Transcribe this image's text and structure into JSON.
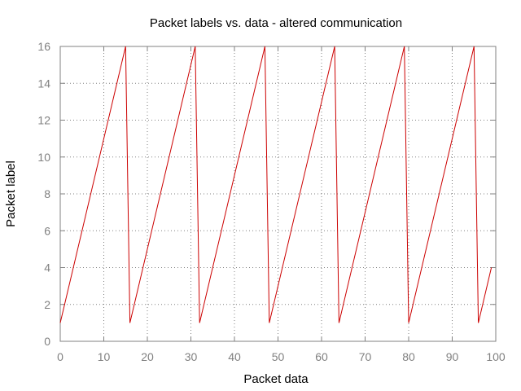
{
  "chart_data": {
    "type": "line",
    "title": "Packet labels vs. data - altered communication",
    "xlabel": "Packet data",
    "ylabel": "Packet label",
    "xlim": [
      0,
      100
    ],
    "ylim": [
      0,
      16
    ],
    "x_ticks": [
      0,
      10,
      20,
      30,
      40,
      50,
      60,
      70,
      80,
      90,
      100
    ],
    "y_ticks": [
      0,
      2,
      4,
      6,
      8,
      10,
      12,
      14,
      16
    ],
    "grid": true,
    "series": [
      {
        "color": "#cc0000",
        "x": [
          0,
          15,
          16,
          31,
          32,
          47,
          48,
          63,
          64,
          79,
          80,
          95,
          96,
          99
        ],
        "y": [
          1,
          16,
          1,
          16,
          1,
          16,
          1,
          16,
          1,
          16,
          1,
          16,
          1,
          4
        ]
      }
    ]
  }
}
